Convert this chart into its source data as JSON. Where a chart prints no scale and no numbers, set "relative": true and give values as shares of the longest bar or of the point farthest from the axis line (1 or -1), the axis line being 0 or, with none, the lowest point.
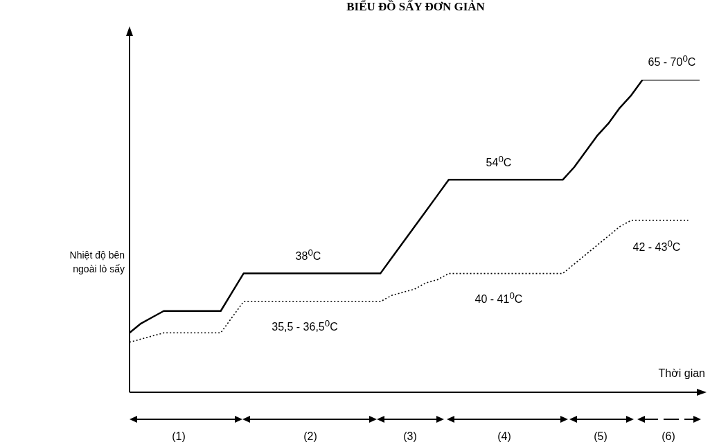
{
  "chart_data": {
    "type": "line",
    "title": "BIỂU ĐỒ SẤY ĐƠN GIẢN",
    "xlabel": "Thời gian",
    "ylabel": "Nhiệt độ bên ngoài lò sấy",
    "relative": true,
    "legend": false,
    "marker": "none",
    "categories": [
      null,
      null,
      null,
      null,
      null,
      null,
      null,
      null,
      null,
      null,
      null,
      null,
      null,
      null,
      null,
      null,
      null,
      null,
      null,
      null,
      null,
      null,
      null,
      null,
      null,
      null,
      null,
      null,
      null,
      null,
      null,
      null,
      null,
      null,
      null,
      null,
      null,
      null,
      null,
      null,
      null,
      null,
      null,
      null,
      null,
      null,
      null,
      null,
      null,
      null,
      null
    ],
    "series": [
      {
        "color": "#000000",
        "line_style": "solid",
        "values": [
          0.19,
          0.22,
          0.24,
          0.26,
          0.26,
          0.26,
          0.26,
          0.26,
          0.26,
          0.32,
          0.38,
          0.38,
          0.38,
          0.38,
          0.38,
          0.38,
          0.38,
          0.38,
          0.38,
          0.38,
          0.38,
          0.38,
          0.38,
          0.43,
          0.48,
          0.53,
          0.58,
          0.63,
          0.68,
          0.68,
          0.68,
          0.68,
          0.68,
          0.68,
          0.68,
          0.68,
          0.68,
          0.68,
          0.68,
          0.72,
          0.77,
          0.82,
          0.86,
          0.91,
          0.95,
          1,
          1,
          1,
          1,
          1,
          1
        ]
      },
      {
        "color": "#000000",
        "line_style": "dotted",
        "values": [
          0.16,
          0.17,
          0.18,
          0.19,
          0.19,
          0.19,
          0.19,
          0.19,
          0.19,
          0.24,
          0.29,
          0.29,
          0.29,
          0.29,
          0.29,
          0.29,
          0.29,
          0.29,
          0.29,
          0.29,
          0.29,
          0.29,
          0.29,
          0.31,
          0.32,
          0.33,
          0.35,
          0.36,
          0.38,
          0.38,
          0.38,
          0.38,
          0.38,
          0.38,
          0.38,
          0.38,
          0.38,
          0.38,
          0.38,
          0.41,
          0.44,
          0.47,
          0.5,
          0.53,
          0.55,
          0.55,
          0.55,
          0.55,
          0.55,
          0.55,
          null
        ]
      }
    ],
    "annotations": [
      "65 - 70$^{0}$C",
      "54$^{0}$C",
      "38$^{0}$C",
      "35,5 - 36,5$^{0}$C",
      "40 - 41$^{0}$C",
      "42 - 43$^{0}$C",
      "(1)",
      "(2)",
      "(3)",
      "(4)",
      "(5)",
      "(6)"
    ]
  }
}
